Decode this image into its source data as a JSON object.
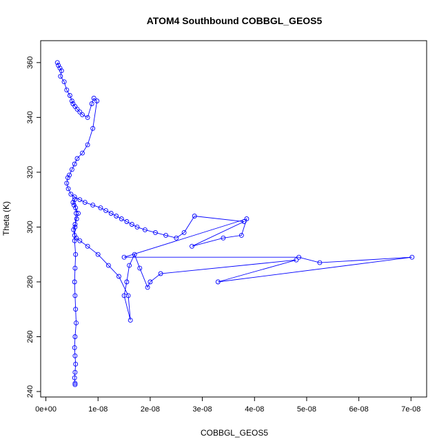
{
  "chart_data": {
    "type": "scatter",
    "title": "ATOM4 Southbound COBBGL_GEOS5",
    "xlabel": "COBBGL_GEOS5",
    "ylabel": "Theta (K)",
    "xlim": [
      -1e-09,
      7.3e-08
    ],
    "ylim": [
      238,
      368
    ],
    "xticks": [
      0,
      1e-08,
      2e-08,
      3e-08,
      4e-08,
      5e-08,
      6e-08,
      7e-08
    ],
    "xtick_labels": [
      "0e+00",
      "1e-08",
      "2e-08",
      "3e-08",
      "4e-08",
      "5e-08",
      "6e-08",
      "7e-08"
    ],
    "yticks": [
      240,
      260,
      280,
      300,
      320,
      340,
      360
    ],
    "ytick_labels": [
      "240",
      "260",
      "280",
      "300",
      "320",
      "340",
      "360"
    ],
    "grid": false,
    "series_color": "#0000ff",
    "marker": "open-circle",
    "connected": true,
    "series": [
      {
        "x": [
          2.2e-09,
          2.4e-09,
          2.7e-09,
          3e-09,
          2.8e-09,
          3.5e-09,
          4e-09,
          4.6e-09,
          5e-09,
          5.2e-09,
          5.6e-09,
          6e-09,
          6.5e-09,
          7e-09,
          8e-09,
          8.8e-09,
          9.2e-09,
          9.8e-09,
          9e-09,
          8e-09,
          7e-09,
          6e-09,
          5.5e-09,
          5e-09,
          4.5e-09,
          4.2e-09,
          4e-09,
          4.3e-09,
          4.8e-09,
          5.5e-09,
          6.5e-09,
          7.5e-09,
          9e-09,
          1.05e-08,
          1.15e-08,
          1.25e-08,
          1.35e-08,
          1.45e-08,
          1.55e-08,
          1.65e-08,
          1.75e-08,
          1.9e-08,
          2.1e-08,
          2.3e-08,
          2.5e-08,
          2.65e-08,
          2.85e-08,
          3.8e-08,
          2.8e-08,
          3.4e-08,
          3.75e-08,
          3.85e-08,
          1.5e-08,
          4.85e-08,
          5.25e-08,
          7.02e-08,
          3.3e-08,
          4.8e-08,
          2.2e-08,
          2e-08,
          1.95e-08,
          1.8e-08,
          1.7e-08,
          1.6e-08,
          1.55e-08,
          1.5e-08,
          1.62e-08,
          1.58e-08,
          1.4e-08,
          1.2e-08,
          1e-08,
          8e-09,
          6.5e-09,
          5.8e-09,
          5.5e-09,
          5.3e-09,
          5.6e-09,
          5.9e-09,
          6.2e-09,
          5.7e-09,
          5.4e-09,
          5.2e-09,
          5.5e-09,
          5.8e-09,
          5.6e-09,
          5.5e-09,
          5.7e-09,
          5.6e-09,
          5.5e-09,
          5.6e-09,
          5.7e-09,
          5.8e-09,
          5.6e-09,
          5.5e-09,
          5.6e-09,
          5.7e-09,
          5.6e-09,
          5.5e-09,
          5.6e-09,
          5.6e-09
        ],
        "y": [
          360,
          359,
          358,
          357,
          355,
          353,
          350,
          348,
          346,
          345,
          344,
          343,
          342,
          341,
          340,
          345,
          347,
          346,
          336,
          330,
          327,
          325,
          323,
          321,
          319,
          318,
          316,
          314,
          312,
          311,
          310,
          309,
          308,
          307,
          306,
          305,
          304,
          303,
          302,
          301,
          300,
          299,
          298,
          297,
          296,
          298,
          304,
          302,
          293,
          296,
          297,
          303,
          289,
          289,
          287,
          289,
          280,
          288,
          283,
          280,
          278,
          285,
          290,
          286,
          280,
          275,
          266,
          275,
          282,
          286,
          290,
          293,
          295,
          296,
          297,
          299,
          301,
          303,
          305,
          307,
          308,
          309,
          310,
          305,
          300,
          295,
          290,
          285,
          280,
          275,
          270,
          265,
          260,
          256,
          253,
          250,
          247,
          245,
          243,
          242.5
        ]
      }
    ]
  }
}
